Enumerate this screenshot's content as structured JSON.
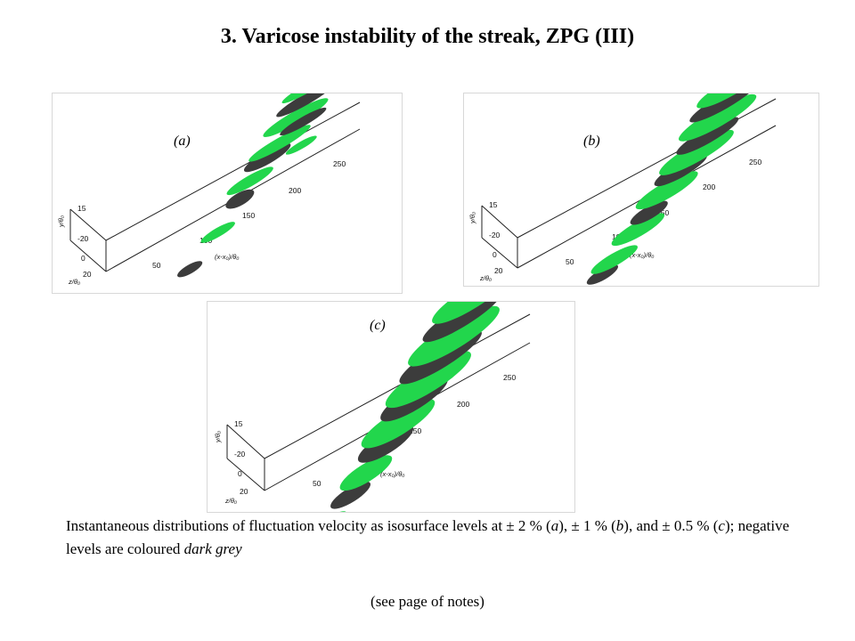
{
  "title": "3. Varicose instability of the streak, ZPG (III)",
  "colors": {
    "positive": "#22d64c",
    "negative": "#3c3c3c",
    "frame": "#d8d8d8"
  },
  "panels": [
    {
      "label": "(a)",
      "axes": {
        "x_label": "(x-x₀)/θ₀",
        "x_ticks": [
          "50",
          "100",
          "150",
          "200",
          "250"
        ],
        "y_label": "y/θ₀",
        "y_ticks": [
          "15"
        ],
        "z_label": "z/θ₀",
        "z_ticks": [
          "-20",
          "0",
          "20"
        ]
      }
    },
    {
      "label": "(b)",
      "axes": {
        "x_label": "(x-x₀)/θ₀",
        "x_ticks": [
          "50",
          "100",
          "150",
          "200",
          "250"
        ],
        "y_label": "y/θ₀",
        "y_ticks": [
          "15"
        ],
        "z_label": "z/θ₀",
        "z_ticks": [
          "-20",
          "0",
          "20"
        ]
      }
    },
    {
      "label": "(c)",
      "axes": {
        "x_label": "(x-x₀)/θ₀",
        "x_ticks": [
          "50",
          "100",
          "150",
          "200",
          "250"
        ],
        "y_label": "y/θ₀",
        "y_ticks": [
          "15"
        ],
        "z_label": "z/θ₀",
        "z_ticks": [
          "-20",
          "0",
          "20"
        ]
      }
    }
  ],
  "caption": {
    "part1": "Instantaneous distributions of fluctuation velocity as isosurface levels at ± 2 % (",
    "a": "a",
    "part2": "), ± 1 % (",
    "b": "b",
    "part3": "), and ± 0.5 % (",
    "c": "c",
    "part4": "); negative levels are coloured ",
    "emph": "dark grey"
  },
  "notes": "(see page of notes)"
}
